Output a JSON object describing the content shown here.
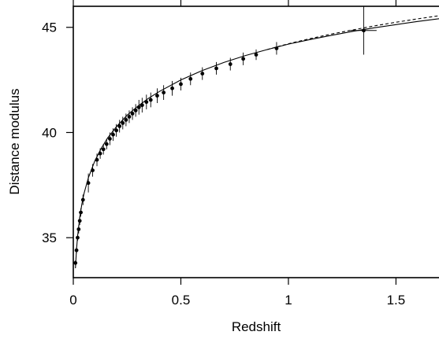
{
  "chart_data": {
    "type": "scatter",
    "title": "",
    "xlabel": "Redshift",
    "ylabel": "Distance modulus",
    "xlim": [
      0,
      1.7
    ],
    "ylim": [
      33.1,
      46.0
    ],
    "grid": false,
    "legend": "none",
    "x_ticks": [
      {
        "value": 0,
        "label": "0"
      },
      {
        "value": 0.5,
        "label": "0.5"
      },
      {
        "value": 1,
        "label": "1"
      },
      {
        "value": 1.5,
        "label": "1.5"
      }
    ],
    "y_ticks": [
      {
        "value": 35,
        "label": "35"
      },
      {
        "value": 40,
        "label": "40"
      },
      {
        "value": 45,
        "label": "45"
      }
    ],
    "points": [
      {
        "x": 0.01,
        "y": 33.8,
        "err": 0.12
      },
      {
        "x": 0.015,
        "y": 34.4,
        "err": 0.15
      },
      {
        "x": 0.02,
        "y": 35.0,
        "err": 0.15
      },
      {
        "x": 0.025,
        "y": 35.4,
        "err": 0.2
      },
      {
        "x": 0.03,
        "y": 35.8,
        "err": 0.2
      },
      {
        "x": 0.035,
        "y": 36.2,
        "err": 0.2
      },
      {
        "x": 0.045,
        "y": 36.8,
        "err": 0.25
      },
      {
        "x": 0.07,
        "y": 37.6,
        "err": 0.45
      },
      {
        "x": 0.09,
        "y": 38.2,
        "err": 0.3
      },
      {
        "x": 0.11,
        "y": 38.7,
        "err": 0.3
      },
      {
        "x": 0.125,
        "y": 39.0,
        "err": 0.25
      },
      {
        "x": 0.14,
        "y": 39.2,
        "err": 0.25
      },
      {
        "x": 0.155,
        "y": 39.45,
        "err": 0.25
      },
      {
        "x": 0.17,
        "y": 39.7,
        "err": 0.3
      },
      {
        "x": 0.185,
        "y": 39.9,
        "err": 0.3
      },
      {
        "x": 0.2,
        "y": 40.1,
        "err": 0.3
      },
      {
        "x": 0.215,
        "y": 40.3,
        "err": 0.3
      },
      {
        "x": 0.23,
        "y": 40.45,
        "err": 0.3
      },
      {
        "x": 0.245,
        "y": 40.6,
        "err": 0.3
      },
      {
        "x": 0.26,
        "y": 40.75,
        "err": 0.3
      },
      {
        "x": 0.275,
        "y": 40.9,
        "err": 0.3
      },
      {
        "x": 0.29,
        "y": 41.05,
        "err": 0.3
      },
      {
        "x": 0.305,
        "y": 41.2,
        "err": 0.35
      },
      {
        "x": 0.32,
        "y": 41.3,
        "err": 0.35
      },
      {
        "x": 0.34,
        "y": 41.45,
        "err": 0.35
      },
      {
        "x": 0.36,
        "y": 41.55,
        "err": 0.35
      },
      {
        "x": 0.39,
        "y": 41.75,
        "err": 0.35
      },
      {
        "x": 0.42,
        "y": 41.9,
        "err": 0.35
      },
      {
        "x": 0.46,
        "y": 42.1,
        "err": 0.35
      },
      {
        "x": 0.5,
        "y": 42.3,
        "err": 0.3
      },
      {
        "x": 0.545,
        "y": 42.55,
        "err": 0.3
      },
      {
        "x": 0.6,
        "y": 42.8,
        "err": 0.3
      },
      {
        "x": 0.665,
        "y": 43.05,
        "err": 0.3
      },
      {
        "x": 0.73,
        "y": 43.25,
        "err": 0.3
      },
      {
        "x": 0.79,
        "y": 43.5,
        "err": 0.3
      },
      {
        "x": 0.85,
        "y": 43.7,
        "err": 0.25
      },
      {
        "x": 0.945,
        "y": 44.0,
        "err": 0.3
      },
      {
        "x": 1.35,
        "y": 44.85,
        "err": 1.15
      }
    ],
    "models": [
      {
        "style": "solid",
        "x": [
          0.01,
          0.015,
          0.02,
          0.03,
          0.04,
          0.05,
          0.07,
          0.1,
          0.13,
          0.16,
          0.2,
          0.25,
          0.3,
          0.35,
          0.4,
          0.5,
          0.6,
          0.7,
          0.8,
          0.9,
          1.0,
          1.1,
          1.2,
          1.3,
          1.4,
          1.5,
          1.6,
          1.7
        ],
        "y": [
          33.55,
          34.45,
          35.08,
          35.97,
          36.6,
          37.1,
          37.85,
          38.65,
          39.25,
          39.75,
          40.27,
          40.82,
          41.25,
          41.63,
          41.95,
          42.5,
          42.95,
          43.33,
          43.66,
          43.94,
          44.2,
          44.42,
          44.62,
          44.81,
          44.98,
          45.13,
          45.28,
          45.41
        ]
      },
      {
        "style": "dashed",
        "x": [
          0.9,
          1.0,
          1.1,
          1.2,
          1.3,
          1.4,
          1.5,
          1.6,
          1.7
        ],
        "y": [
          43.94,
          44.22,
          44.46,
          44.68,
          44.88,
          45.07,
          45.24,
          45.4,
          45.55
        ]
      }
    ]
  }
}
